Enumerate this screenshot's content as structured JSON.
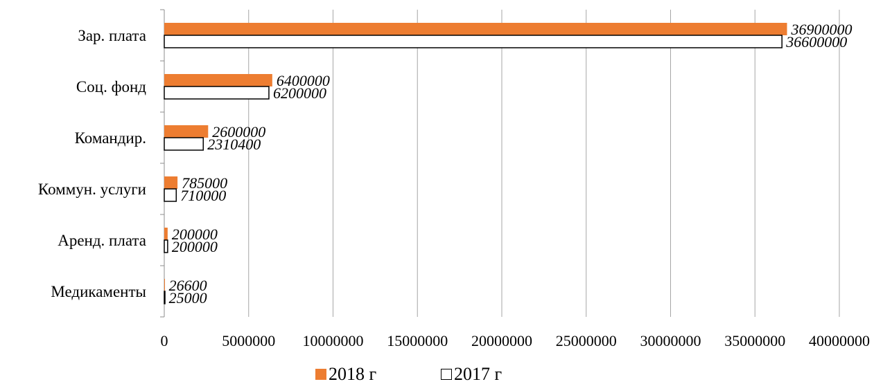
{
  "chart_data": {
    "type": "bar",
    "orientation": "horizontal",
    "categories": [
      "Зар. плата",
      "Соц. фонд",
      "Командир.",
      "Коммун. услуги",
      "Аренд. плата",
      "Медикаменты"
    ],
    "series": [
      {
        "name": "2018 г",
        "color": "#ED7D31",
        "values": [
          36900000,
          6400000,
          2600000,
          785000,
          200000,
          26600
        ],
        "labels": [
          "36900000",
          "6400000",
          "2600000",
          "785000",
          "200000",
          "26600"
        ]
      },
      {
        "name": "2017 г",
        "color": "#FFFFFF",
        "values": [
          36600000,
          6200000,
          2310400,
          710000,
          200000,
          25000
        ],
        "labels": [
          "36600000",
          "6200000",
          "2310400",
          "710000",
          "200000",
          "25000"
        ]
      }
    ],
    "xlim": [
      0,
      40000000
    ],
    "x_ticks": [
      0,
      5000000,
      10000000,
      15000000,
      20000000,
      25000000,
      30000000,
      35000000,
      40000000
    ],
    "x_tick_labels": [
      "0",
      "5000000",
      "10000000",
      "15000000",
      "20000000",
      "25000000",
      "30000000",
      "35000000",
      "40000000"
    ],
    "grid": "vertical",
    "legend_position": "bottom",
    "title": "",
    "xlabel": "",
    "ylabel": ""
  }
}
